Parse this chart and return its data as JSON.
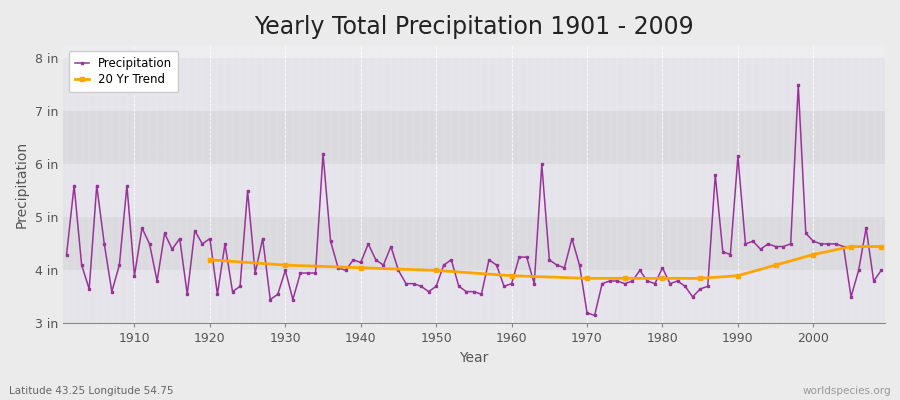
{
  "title": "Yearly Total Precipitation 1901 - 2009",
  "xlabel": "Year",
  "ylabel": "Precipitation",
  "subtitle": "Latitude 43.25 Longitude 54.75",
  "watermark": "worldspecies.org",
  "years": [
    1901,
    1902,
    1903,
    1904,
    1905,
    1906,
    1907,
    1908,
    1909,
    1910,
    1911,
    1912,
    1913,
    1914,
    1915,
    1916,
    1917,
    1918,
    1919,
    1920,
    1921,
    1922,
    1923,
    1924,
    1925,
    1926,
    1927,
    1928,
    1929,
    1930,
    1931,
    1932,
    1933,
    1934,
    1935,
    1936,
    1937,
    1938,
    1939,
    1940,
    1941,
    1942,
    1943,
    1944,
    1945,
    1946,
    1947,
    1948,
    1949,
    1950,
    1951,
    1952,
    1953,
    1954,
    1955,
    1956,
    1957,
    1958,
    1959,
    1960,
    1961,
    1962,
    1963,
    1964,
    1965,
    1966,
    1967,
    1968,
    1969,
    1970,
    1971,
    1972,
    1973,
    1974,
    1975,
    1976,
    1977,
    1978,
    1979,
    1980,
    1981,
    1982,
    1983,
    1984,
    1985,
    1986,
    1987,
    1988,
    1989,
    1990,
    1991,
    1992,
    1993,
    1994,
    1995,
    1996,
    1997,
    1998,
    1999,
    2000,
    2001,
    2002,
    2003,
    2004,
    2005,
    2006,
    2007,
    2008,
    2009
  ],
  "precip_in": [
    4.3,
    5.6,
    4.1,
    3.65,
    5.6,
    4.5,
    3.6,
    4.1,
    5.6,
    3.9,
    4.8,
    4.5,
    3.8,
    4.7,
    4.4,
    4.6,
    3.55,
    4.75,
    4.5,
    4.6,
    3.55,
    4.5,
    3.6,
    3.7,
    5.5,
    3.95,
    4.6,
    3.45,
    3.55,
    4.0,
    3.45,
    3.95,
    3.95,
    3.95,
    6.2,
    4.55,
    4.05,
    4.0,
    4.2,
    4.15,
    4.5,
    4.2,
    4.1,
    4.45,
    4.0,
    3.75,
    3.75,
    3.7,
    3.6,
    3.7,
    4.1,
    4.2,
    3.7,
    3.6,
    3.6,
    3.55,
    4.2,
    4.1,
    3.7,
    3.75,
    4.25,
    4.25,
    3.75,
    6.0,
    4.2,
    4.1,
    4.05,
    4.6,
    4.1,
    3.2,
    3.15,
    3.75,
    3.8,
    3.8,
    3.75,
    3.8,
    4.0,
    3.8,
    3.75,
    4.05,
    3.75,
    3.8,
    3.7,
    3.5,
    3.65,
    3.7,
    5.8,
    4.35,
    4.3,
    6.15,
    4.5,
    4.55,
    4.4,
    4.5,
    4.45,
    4.45,
    4.5,
    7.5,
    4.7,
    4.55,
    4.5,
    4.5,
    4.5,
    4.45,
    3.5,
    4.0,
    4.8,
    3.8,
    4.0
  ],
  "trend_years": [
    1920,
    1930,
    1940,
    1950,
    1960,
    1970,
    1975,
    1980,
    1985,
    1990,
    1995,
    2000,
    2005,
    2009
  ],
  "trend_values": [
    4.2,
    4.1,
    4.05,
    4.0,
    3.9,
    3.85,
    3.85,
    3.85,
    3.85,
    3.9,
    4.1,
    4.3,
    4.45,
    4.45
  ],
  "precip_color": "#993399",
  "trend_color": "#FFA500",
  "bg_color": "#EBEBEB",
  "plot_bg_color_light": "#EDEDF0",
  "plot_bg_color_dark": "#E0E0E5",
  "grid_color": "#FFFFFF",
  "ylim_min": 3.0,
  "ylim_max": 8.25,
  "yticks": [
    3,
    4,
    5,
    6,
    7,
    8
  ],
  "ytick_labels": [
    "3 in",
    "4 in",
    "5 in",
    "6 in",
    "7 in",
    "8 in"
  ],
  "xticks": [
    1910,
    1920,
    1930,
    1940,
    1950,
    1960,
    1970,
    1980,
    1990,
    2000
  ],
  "title_fontsize": 17,
  "label_fontsize": 10,
  "tick_fontsize": 9,
  "band_colors": [
    "#E8E8EC",
    "#DCDCE2",
    "#E8E8EC",
    "#DCDCE2",
    "#E8E8EC",
    "#DCDCE2"
  ]
}
